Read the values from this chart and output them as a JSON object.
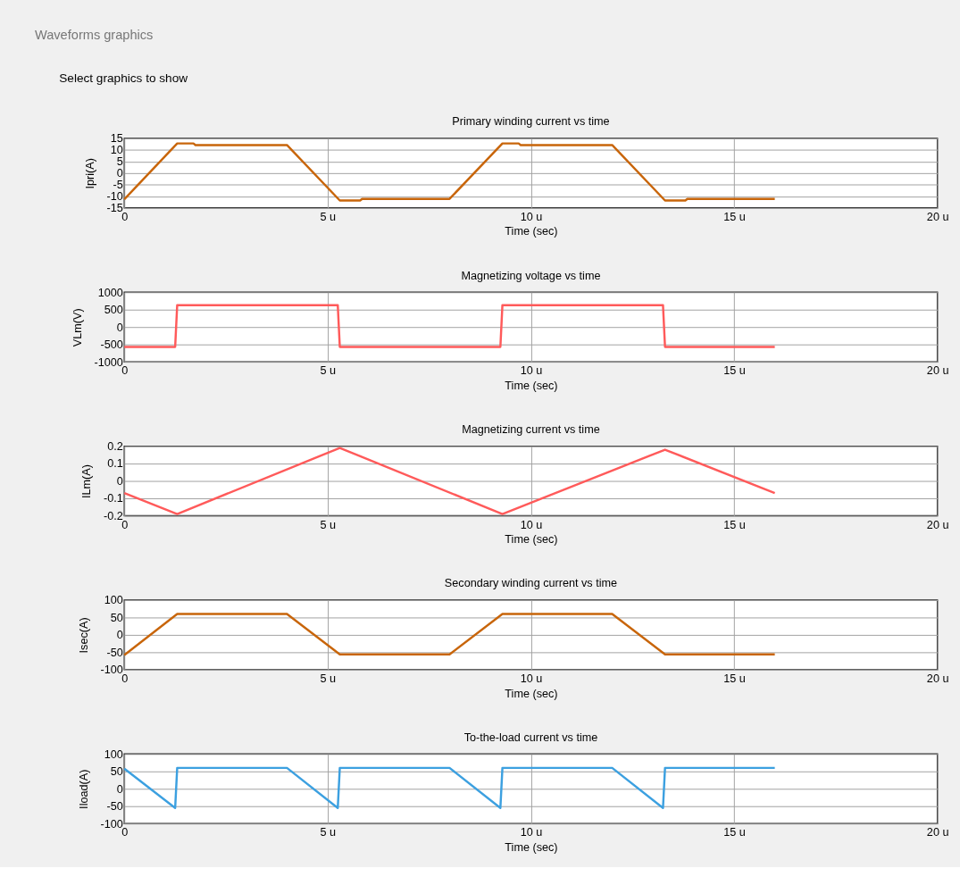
{
  "chart_data": [
    {
      "type": "line",
      "title": "Primary winding current vs time",
      "xlabel": "Time (sec)",
      "ylabel": "Ipri(A)",
      "annotations": [
        "Waveforms graphics",
        "Select graphics to show"
      ],
      "grid": true,
      "legend": false,
      "xlim": [
        0,
        20
      ],
      "xticks": [
        0,
        {
          "value": 5,
          "label": "5 u"
        },
        {
          "value": 10,
          "label": "10 u"
        },
        {
          "value": 15,
          "label": "15 u"
        },
        {
          "value": 20,
          "label": "20 u"
        }
      ],
      "ylim": [
        -15,
        15
      ],
      "yticks": [
        -15,
        -10,
        -5,
        0,
        5,
        10,
        15
      ],
      "series": [
        {
          "color": "#c8650a",
          "x": [
            0,
            1.3,
            1.7,
            1.75,
            4.0,
            5.3,
            5.8,
            5.85,
            8.0,
            9.3,
            9.7,
            9.75,
            12.0,
            13.3,
            13.8,
            13.85,
            16.0
          ],
          "values": [
            -11.3,
            12.8,
            12.8,
            12.1,
            12.1,
            -11.8,
            -11.8,
            -11.1,
            -11.1,
            12.8,
            12.8,
            12.1,
            12.1,
            -11.8,
            -11.8,
            -11.1,
            -11.1
          ]
        }
      ]
    },
    {
      "type": "line",
      "title": "Magnetizing voltage vs time",
      "xlabel": "Time (sec)",
      "ylabel": "VLm(V)",
      "grid": true,
      "legend": false,
      "xlim": [
        0,
        20
      ],
      "xticks": [
        0,
        {
          "value": 5,
          "label": "5 u"
        },
        {
          "value": 10,
          "label": "10 u"
        },
        {
          "value": 15,
          "label": "15 u"
        },
        {
          "value": 20,
          "label": "20 u"
        }
      ],
      "ylim": [
        -1000,
        1000
      ],
      "yticks": [
        -1000,
        -500,
        0,
        500,
        1000
      ],
      "series": [
        {
          "color": "#ff5a5a",
          "x": [
            0,
            1.25,
            1.3,
            5.25,
            5.3,
            9.25,
            9.3,
            13.25,
            13.3,
            16.0
          ],
          "values": [
            -570,
            -570,
            630,
            630,
            -570,
            -570,
            630,
            630,
            -570,
            -570
          ]
        }
      ]
    },
    {
      "type": "line",
      "title": "Magnetizing current vs time",
      "xlabel": "Time (sec)",
      "ylabel": "ILm(A)",
      "grid": true,
      "legend": false,
      "xlim": [
        0,
        20
      ],
      "xticks": [
        0,
        {
          "value": 5,
          "label": "5 u"
        },
        {
          "value": 10,
          "label": "10 u"
        },
        {
          "value": 15,
          "label": "15 u"
        },
        {
          "value": 20,
          "label": "20 u"
        }
      ],
      "ylim": [
        -0.2,
        0.2
      ],
      "yticks": [
        -0.2,
        -0.1,
        0,
        0.1,
        0.2
      ],
      "series": [
        {
          "color": "#ff5a5a",
          "x": [
            0,
            1.3,
            5.3,
            9.3,
            13.3,
            16.0
          ],
          "values": [
            -0.07,
            -0.19,
            0.19,
            -0.19,
            0.18,
            -0.07
          ]
        }
      ]
    },
    {
      "type": "line",
      "title": "Secondary winding current vs time",
      "xlabel": "Time (sec)",
      "ylabel": "Isec(A)",
      "grid": true,
      "legend": false,
      "xlim": [
        0,
        20
      ],
      "xticks": [
        0,
        {
          "value": 5,
          "label": "5 u"
        },
        {
          "value": 10,
          "label": "10 u"
        },
        {
          "value": 15,
          "label": "15 u"
        },
        {
          "value": 20,
          "label": "20 u"
        }
      ],
      "ylim": [
        -100,
        100
      ],
      "yticks": [
        -100,
        -50,
        0,
        50,
        100
      ],
      "series": [
        {
          "color": "#c8650a",
          "x": [
            0,
            1.3,
            4.0,
            5.3,
            8.0,
            9.3,
            12.0,
            13.3,
            16.0
          ],
          "values": [
            -58,
            60,
            60,
            -56,
            -56,
            60,
            60,
            -56,
            -56
          ]
        }
      ]
    },
    {
      "type": "line",
      "title": "To-the-load current vs time",
      "xlabel": "Time (sec)",
      "ylabel": "Iload(A)",
      "grid": true,
      "legend": false,
      "xlim": [
        0,
        20
      ],
      "xticks": [
        0,
        {
          "value": 5,
          "label": "5 u"
        },
        {
          "value": 10,
          "label": "10 u"
        },
        {
          "value": 15,
          "label": "15 u"
        },
        {
          "value": 20,
          "label": "20 u"
        }
      ],
      "ylim": [
        -100,
        100
      ],
      "yticks": [
        -100,
        -50,
        0,
        50,
        100
      ],
      "series": [
        {
          "color": "#3ca0e0",
          "x": [
            0,
            1.25,
            1.3,
            4.0,
            5.25,
            5.3,
            8.0,
            9.25,
            9.3,
            12.0,
            13.25,
            13.3,
            16.0
          ],
          "values": [
            58,
            -55,
            60,
            60,
            -55,
            60,
            60,
            -55,
            60,
            60,
            -55,
            60,
            60
          ]
        }
      ]
    }
  ]
}
